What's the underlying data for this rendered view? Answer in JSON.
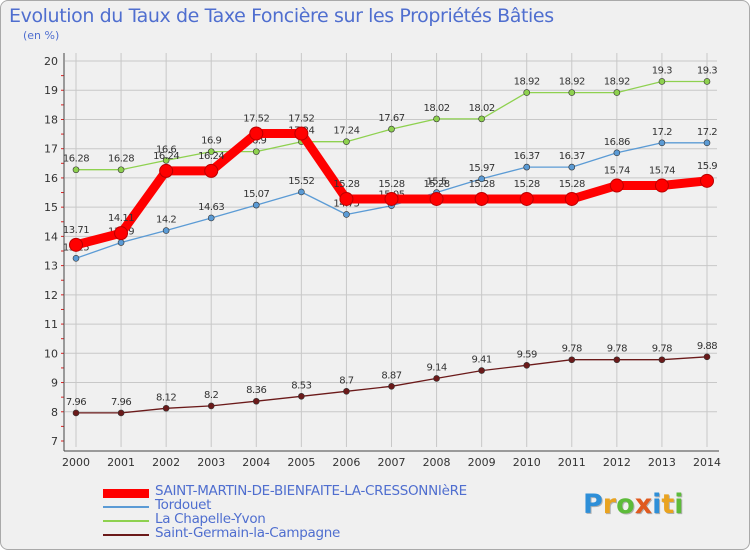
{
  "page": {
    "title": "Evolution du Taux de Taxe Foncière sur les Propriétés Bâties",
    "subtitle": "(en %)",
    "logo": "Proxiti"
  },
  "colors": {
    "background": "#f0f0f0",
    "grid": "#c8c8c8",
    "axis": "#444444",
    "title": "#4f6ecf"
  },
  "chart_data": {
    "type": "line",
    "title": "Evolution du Taux de Taxe Foncière sur les Propriétés Bâties",
    "subtitle": "(en %)",
    "xlabel": "",
    "ylabel": "",
    "ylim": [
      7,
      20
    ],
    "yticks": [
      7,
      8,
      9,
      10,
      11,
      12,
      13,
      14,
      15,
      16,
      17,
      18,
      19,
      20
    ],
    "grid": true,
    "legend_position": "bottom-left",
    "x": [
      2000,
      2001,
      2002,
      2003,
      2004,
      2005,
      2006,
      2007,
      2008,
      2009,
      2010,
      2011,
      2012,
      2013,
      2014
    ],
    "series": [
      {
        "name": "SAINT-MARTIN-DE-BIENFAITE-LA-CRESSONNIèRE",
        "color": "#ff0000",
        "style": "thick",
        "values": [
          13.71,
          14.11,
          16.24,
          16.24,
          17.52,
          17.52,
          15.28,
          15.28,
          15.28,
          15.28,
          15.28,
          15.28,
          15.74,
          15.74,
          15.9
        ]
      },
      {
        "name": "Tordouet",
        "color": "#5b9bd5",
        "style": "thin",
        "values": [
          13.25,
          13.79,
          14.2,
          14.63,
          15.07,
          15.52,
          14.75,
          15.05,
          15.5,
          15.97,
          16.37,
          16.37,
          16.86,
          17.2,
          17.2
        ]
      },
      {
        "name": "La Chapelle-Yvon",
        "color": "#8ed14f",
        "style": "thin",
        "values": [
          16.28,
          16.28,
          16.6,
          16.9,
          16.9,
          17.24,
          17.24,
          17.67,
          18.02,
          18.02,
          18.92,
          18.92,
          18.92,
          19.3,
          19.3
        ]
      },
      {
        "name": "Saint-Germain-la-Campagne",
        "color": "#6b1a1a",
        "style": "thin",
        "values": [
          7.96,
          7.96,
          8.12,
          8.2,
          8.36,
          8.53,
          8.7,
          8.87,
          9.14,
          9.41,
          9.59,
          9.78,
          9.78,
          9.78,
          9.88
        ]
      }
    ]
  }
}
